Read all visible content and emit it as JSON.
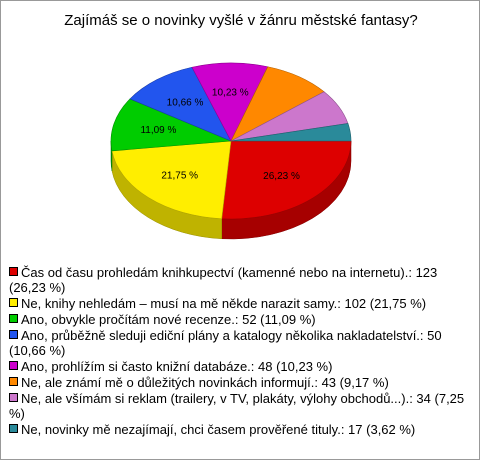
{
  "chart_data": {
    "type": "pie3d",
    "title": "Zajímáš se o novinky vyšlé v žánru městské fantasy?",
    "categories": [
      "Čas od času prohledám knihkupectví (kamenné nebo na internetu).: 123 (26,23 %)",
      "Ne, knihy nehledám – musí na mě někde narazit samy.: 102 (21,75 %)",
      "Ano, obvykle pročítám nové recenze.: 52 (11,09 %)",
      "Ano, průběžně sleduji ediční plány a katalogy několika nakladatelství.: 50 (10,66 %)",
      "Ano, prohlížím si často knižní databáze.: 48 (10,23 %)",
      "Ne, ale známí mě o důležitých novinkách informují.: 43 (9,17 %)",
      "Ne, ale všímám si reklam (trailery, v TV, plakáty, výlohy obchodů...).: 34 (7,25 %)",
      "Ne, novinky mě nezajímají, chci časem prověřené tituly.: 17 (3,62 %)"
    ],
    "values": [
      26.23,
      21.75,
      11.09,
      10.66,
      10.23,
      9.17,
      7.25,
      3.62
    ],
    "value_labels": [
      "26,23 %",
      "21,75 %",
      "11,09 %",
      "10,66 %",
      "10,23 %",
      null,
      null,
      null
    ],
    "colors": [
      "#dd0000",
      "#ffee00",
      "#00cc00",
      "#2255ee",
      "#cc00cc",
      "#ff8800",
      "#cc77cc",
      "#2a8a9a"
    ]
  }
}
